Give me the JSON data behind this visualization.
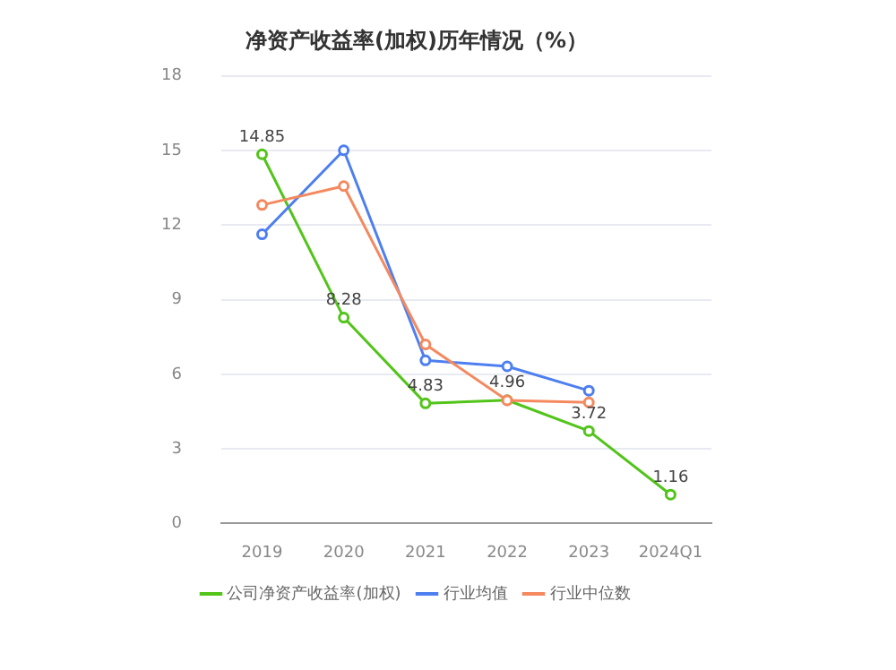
{
  "chart_data": {
    "type": "line",
    "title": "净资产收益率(加权)历年情况（%）",
    "categories": [
      "2019",
      "2020",
      "2021",
      "2022",
      "2023",
      "2024Q1"
    ],
    "series": [
      {
        "name": "公司净资产收益率(加权)",
        "color": "#52c41a",
        "values": [
          14.85,
          8.28,
          4.83,
          4.96,
          3.72,
          1.16
        ],
        "value_labels": [
          "14.85",
          "8.28",
          "4.83",
          "4.96",
          "3.72",
          "1.16"
        ]
      },
      {
        "name": "行业均值",
        "color": "#4e7ff0",
        "values": [
          11.63,
          15.01,
          6.56,
          6.32,
          5.34,
          null
        ]
      },
      {
        "name": "行业中位数",
        "color": "#f4895f",
        "values": [
          12.81,
          13.57,
          7.2,
          4.95,
          4.87,
          null
        ]
      }
    ],
    "ylim": [
      0,
      18
    ],
    "yticks": [
      0,
      3,
      6,
      9,
      12,
      15,
      18
    ],
    "grid": "y",
    "legend": "bottom",
    "marker": "circle",
    "line_style": "solid"
  }
}
